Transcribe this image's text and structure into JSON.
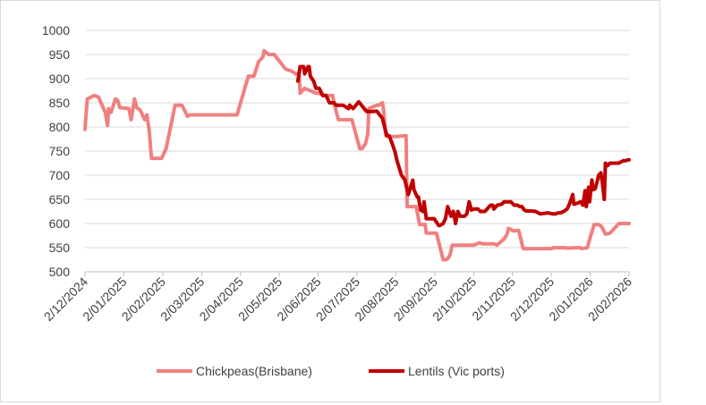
{
  "chart_data": {
    "type": "line",
    "title": "",
    "xlabel": "",
    "ylabel": "",
    "ylim": [
      500,
      1000
    ],
    "yticks": [
      500,
      550,
      600,
      650,
      700,
      750,
      800,
      850,
      900,
      950,
      1000
    ],
    "xticks": [
      "2/12/2024",
      "2/01/2025",
      "2/02/2025",
      "2/03/2025",
      "2/04/2025",
      "2/05/2025",
      "2/06/2025",
      "2/07/2025",
      "2/08/2025",
      "2/09/2025",
      "2/10/2025",
      "2/11/2025",
      "2/12/2025",
      "2/01/2026",
      "2/02/2026"
    ],
    "grid": "horizontal",
    "legend_position": "bottom",
    "series": [
      {
        "name": "Chickpeas(Brisbane)",
        "color": "#F08080",
        "x": [
          0,
          2,
          8,
          12,
          18,
          20,
          21,
          23,
          27,
          29,
          31,
          39,
          41,
          44,
          46,
          49,
          53,
          55,
          57,
          59,
          68,
          72,
          80,
          86,
          91,
          93,
          97,
          101,
          108,
          119,
          135,
          145,
          150,
          154,
          158,
          159,
          163,
          168,
          178,
          184,
          187,
          190,
          191,
          195,
          205,
          207,
          214,
          220,
          221,
          225,
          232,
          237,
          244,
          246,
          249,
          251,
          252,
          259,
          261,
          264,
          265,
          267,
          269,
          274,
          276,
          285,
          286,
          294,
          297,
          302,
          303,
          308,
          312,
          318,
          320,
          322,
          324,
          326,
          345,
          348,
          350,
          353,
          363,
          366,
          367,
          372,
          374,
          375,
          376,
          378,
          380,
          383,
          385,
          389,
          410,
          414,
          416,
          418,
          425,
          428,
          439,
          441,
          446,
          449,
          452,
          456,
          458,
          459,
          462,
          466,
          474,
          483
        ],
        "y": [
          795,
          858,
          865,
          862,
          830,
          803,
          838,
          830,
          858,
          855,
          840,
          838,
          815,
          858,
          840,
          835,
          815,
          825,
          792,
          735,
          735,
          755,
          845,
          845,
          822,
          825,
          825,
          825,
          825,
          825,
          825,
          905,
          905,
          935,
          945,
          958,
          950,
          950,
          920,
          915,
          910,
          910,
          870,
          880,
          870,
          870,
          865,
          865,
          850,
          815,
          815,
          815,
          755,
          755,
          765,
          785,
          838,
          845,
          845,
          850,
          838,
          782,
          780,
          780,
          780,
          782,
          635,
          635,
          598,
          598,
          580,
          580,
          580,
          525,
          525,
          527,
          535,
          555,
          555,
          558,
          560,
          558,
          558,
          555,
          558,
          568,
          575,
          580,
          590,
          588,
          585,
          585,
          586,
          548,
          548,
          548,
          550,
          550,
          550,
          549,
          550,
          548,
          550,
          575,
          598,
          598,
          595,
          592,
          578,
          580,
          600,
          600
        ]
      },
      {
        "name": "Lentils (Vic ports)",
        "color": "#C00000",
        "x": [
          189,
          191,
          194,
          195,
          198,
          199,
          200,
          203,
          205,
          208,
          211,
          214,
          217,
          221,
          223,
          227,
          229,
          234,
          235,
          238,
          243,
          250,
          253,
          255,
          259,
          264,
          266,
          268,
          270,
          272,
          275,
          277,
          281,
          284,
          287,
          289,
          291,
          292,
          295,
          296,
          298,
          300,
          301,
          303,
          310,
          314,
          315,
          318,
          320,
          322,
          325,
          327,
          329,
          331,
          333,
          335,
          337,
          339,
          341,
          343,
          345,
          347,
          349,
          351,
          355,
          360,
          362,
          363,
          366,
          370,
          372,
          375,
          378,
          381,
          384,
          386,
          388,
          390,
          392,
          396,
          400,
          404,
          411,
          415,
          418,
          420,
          422,
          425,
          428,
          430,
          433,
          434,
          437,
          440,
          442,
          444,
          445,
          447,
          448,
          450,
          451,
          453,
          455,
          456,
          458,
          459,
          461,
          462,
          464,
          466,
          468,
          470,
          472,
          474,
          476,
          478,
          480,
          482,
          483
        ],
        "y": [
          895,
          925,
          925,
          910,
          925,
          925,
          905,
          895,
          880,
          880,
          865,
          865,
          850,
          850,
          845,
          845,
          845,
          838,
          845,
          838,
          852,
          832,
          832,
          832,
          833,
          818,
          800,
          782,
          782,
          770,
          750,
          730,
          700,
          690,
          660,
          675,
          690,
          670,
          655,
          655,
          628,
          625,
          645,
          610,
          610,
          596,
          596,
          600,
          610,
          635,
          615,
          625,
          600,
          625,
          615,
          615,
          615,
          620,
          645,
          628,
          630,
          630,
          630,
          625,
          625,
          638,
          638,
          630,
          638,
          640,
          645,
          645,
          645,
          638,
          638,
          635,
          635,
          628,
          626,
          626,
          625,
          620,
          622,
          620,
          620,
          622,
          622,
          625,
          630,
          640,
          660,
          640,
          642,
          645,
          638,
          668,
          635,
          675,
          645,
          690,
          670,
          672,
          690,
          700,
          705,
          690,
          650,
          725,
          720,
          725,
          725,
          725,
          725,
          725,
          728,
          730,
          730,
          732,
          732
        ]
      }
    ]
  }
}
